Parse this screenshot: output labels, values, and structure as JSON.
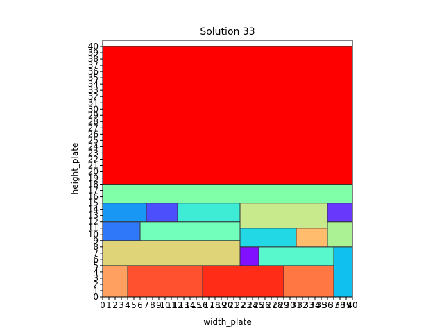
{
  "chart_data": {
    "type": "rectangle-packing",
    "title": "Solution 33",
    "xlabel": "width_plate",
    "ylabel": "height_plate",
    "xlim": [
      0,
      40
    ],
    "ylim": [
      0,
      40
    ],
    "xticks": [
      0,
      1,
      2,
      3,
      4,
      5,
      6,
      7,
      8,
      9,
      10,
      11,
      12,
      13,
      14,
      15,
      16,
      17,
      18,
      19,
      20,
      21,
      22,
      23,
      24,
      25,
      26,
      27,
      28,
      29,
      30,
      31,
      32,
      33,
      34,
      35,
      36,
      37,
      38,
      39,
      40
    ],
    "yticks": [
      0,
      1,
      2,
      3,
      4,
      5,
      6,
      7,
      8,
      9,
      10,
      11,
      12,
      13,
      14,
      15,
      16,
      17,
      18,
      19,
      20,
      21,
      22,
      23,
      24,
      25,
      26,
      27,
      28,
      29,
      30,
      31,
      32,
      33,
      34,
      35,
      36,
      37,
      38,
      39,
      40
    ],
    "grid": false,
    "rectangles": [
      {
        "x": 0,
        "y": 0,
        "w": 4,
        "h": 5,
        "color": "#ffa060"
      },
      {
        "x": 4,
        "y": 0,
        "w": 12,
        "h": 5,
        "color": "#ff5030"
      },
      {
        "x": 16,
        "y": 0,
        "w": 13,
        "h": 5,
        "color": "#ff2c18"
      },
      {
        "x": 29,
        "y": 0,
        "w": 8,
        "h": 5,
        "color": "#ff7844"
      },
      {
        "x": 37,
        "y": 0,
        "w": 3,
        "h": 8,
        "color": "#10c0ee"
      },
      {
        "x": 0,
        "y": 5,
        "w": 22,
        "h": 4,
        "color": "#e0d478"
      },
      {
        "x": 22,
        "y": 5,
        "w": 3,
        "h": 3,
        "color": "#8010ff"
      },
      {
        "x": 25,
        "y": 5,
        "w": 12,
        "h": 3,
        "color": "#58f8cc"
      },
      {
        "x": 22,
        "y": 8,
        "w": 9,
        "h": 3,
        "color": "#22d8e4"
      },
      {
        "x": 31,
        "y": 8,
        "w": 5,
        "h": 3,
        "color": "#ffbc6c"
      },
      {
        "x": 36,
        "y": 8,
        "w": 4,
        "h": 4,
        "color": "#aaf294"
      },
      {
        "x": 0,
        "y": 9,
        "w": 6,
        "h": 3,
        "color": "#3078fa"
      },
      {
        "x": 6,
        "y": 9,
        "w": 16,
        "h": 3,
        "color": "#72ffbc"
      },
      {
        "x": 22,
        "y": 11,
        "w": 14,
        "h": 4,
        "color": "#c8ea8c"
      },
      {
        "x": 0,
        "y": 12,
        "w": 7,
        "h": 3,
        "color": "#1898f4"
      },
      {
        "x": 7,
        "y": 12,
        "w": 5,
        "h": 3,
        "color": "#4c50fc"
      },
      {
        "x": 12,
        "y": 12,
        "w": 10,
        "h": 3,
        "color": "#3eecd6"
      },
      {
        "x": 36,
        "y": 12,
        "w": 4,
        "h": 3,
        "color": "#6838fc"
      },
      {
        "x": 0,
        "y": 15,
        "w": 40,
        "h": 3,
        "color": "#80ffa8"
      },
      {
        "x": 0,
        "y": 18,
        "w": 40,
        "h": 22,
        "color": "#ff0000"
      }
    ]
  }
}
